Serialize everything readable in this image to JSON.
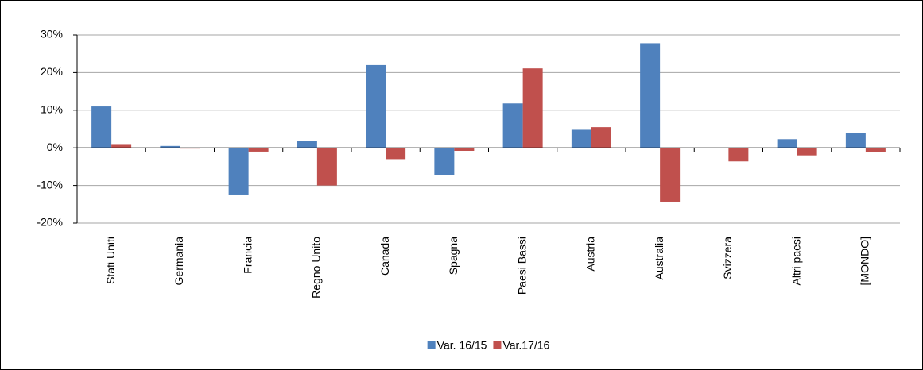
{
  "chart_data": {
    "type": "bar",
    "categories": [
      "Stati Uniti",
      "Germania",
      "Francia",
      "Regno Unito",
      "Canada",
      "Spagna",
      "Paesi Bassi",
      "Austria",
      "Australia",
      "Svizzera",
      "Altri paesi",
      "[MONDO]"
    ],
    "series": [
      {
        "name": "Var. 16/15",
        "color": "#4f81bd",
        "values": [
          11,
          0.5,
          -12.4,
          1.8,
          22,
          -7.2,
          11.8,
          4.8,
          27.8,
          0,
          2.3,
          4
        ]
      },
      {
        "name": "Var.17/16",
        "color": "#c0504d",
        "values": [
          1,
          -0.2,
          -1,
          -10,
          -3,
          -0.8,
          21.1,
          5.5,
          -14.3,
          -3.6,
          -2,
          -1.2
        ]
      }
    ],
    "ylim": [
      -20,
      30
    ],
    "yticks": [
      {
        "value": -20,
        "label": "-20%"
      },
      {
        "value": -10,
        "label": "-10%"
      },
      {
        "value": 0,
        "label": "0%"
      },
      {
        "value": 10,
        "label": "10%"
      },
      {
        "value": 20,
        "label": "20%"
      },
      {
        "value": 30,
        "label": "30%"
      }
    ],
    "grid": true,
    "legend": "bottom"
  }
}
